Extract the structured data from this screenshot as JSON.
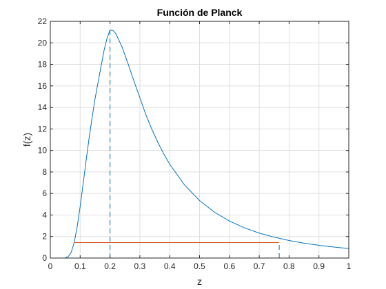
{
  "chart_data": {
    "type": "line",
    "title": "Función de Planck",
    "xlabel": "z",
    "ylabel": "f(z)",
    "xlim": [
      0,
      1
    ],
    "ylim": [
      0,
      22
    ],
    "grid": true,
    "x_ticks": [
      0,
      0.1,
      0.2,
      0.3,
      0.4,
      0.5,
      0.6,
      0.7,
      0.8,
      0.9,
      1
    ],
    "x_tick_labels": [
      "0",
      "0.1",
      "0.2",
      "0.3",
      "0.4",
      "0.5",
      "0.6",
      "0.7",
      "0.8",
      "0.9",
      "1"
    ],
    "y_ticks": [
      0,
      2,
      4,
      6,
      8,
      10,
      12,
      14,
      16,
      18,
      20,
      22
    ],
    "y_tick_labels": [
      "0",
      "2",
      "4",
      "6",
      "8",
      "10",
      "12",
      "14",
      "16",
      "18",
      "20",
      "22"
    ],
    "series": [
      {
        "type": "line",
        "color": "#0072bd",
        "x": [
          0,
          0.03,
          0.05,
          0.06,
          0.07,
          0.08,
          0.09,
          0.1,
          0.11,
          0.12,
          0.13,
          0.14,
          0.15,
          0.16,
          0.17,
          0.18,
          0.19,
          0.2,
          0.21,
          0.22,
          0.24,
          0.26,
          0.28,
          0.3,
          0.32,
          0.34,
          0.36,
          0.38,
          0.4,
          0.45,
          0.5,
          0.55,
          0.6,
          0.65,
          0.7,
          0.75,
          0.8,
          0.85,
          0.9,
          0.95,
          1
        ],
        "y": [
          0,
          0,
          0.01,
          0.12,
          0.53,
          1.44,
          2.9,
          4.79,
          6.91,
          9.08,
          11.16,
          13.04,
          14.83,
          16.33,
          17.82,
          19.29,
          20.43,
          21.18,
          21.15,
          20.83,
          19.64,
          18.1,
          16.46,
          14.9,
          13.33,
          11.99,
          10.77,
          9.68,
          8.72,
          6.78,
          5.34,
          4.26,
          3.44,
          2.81,
          2.32,
          1.94,
          1.63,
          1.38,
          1.18,
          1.02,
          0.88
        ]
      },
      {
        "type": "line",
        "color": "#0072bd",
        "dash": "dashed",
        "x": [
          0.2,
          0.2
        ],
        "y": [
          0,
          21.18
        ]
      },
      {
        "type": "line",
        "color": "#0072bd",
        "dash": "dashed",
        "x": [
          0.767,
          0.767
        ],
        "y": [
          0,
          1.44
        ]
      },
      {
        "type": "line",
        "color": "#d95319",
        "x": [
          0.08,
          0.767
        ],
        "y": [
          1.44,
          1.44
        ]
      }
    ],
    "colors": {
      "axis": "#262626",
      "grid": "#dfdfdf"
    }
  }
}
